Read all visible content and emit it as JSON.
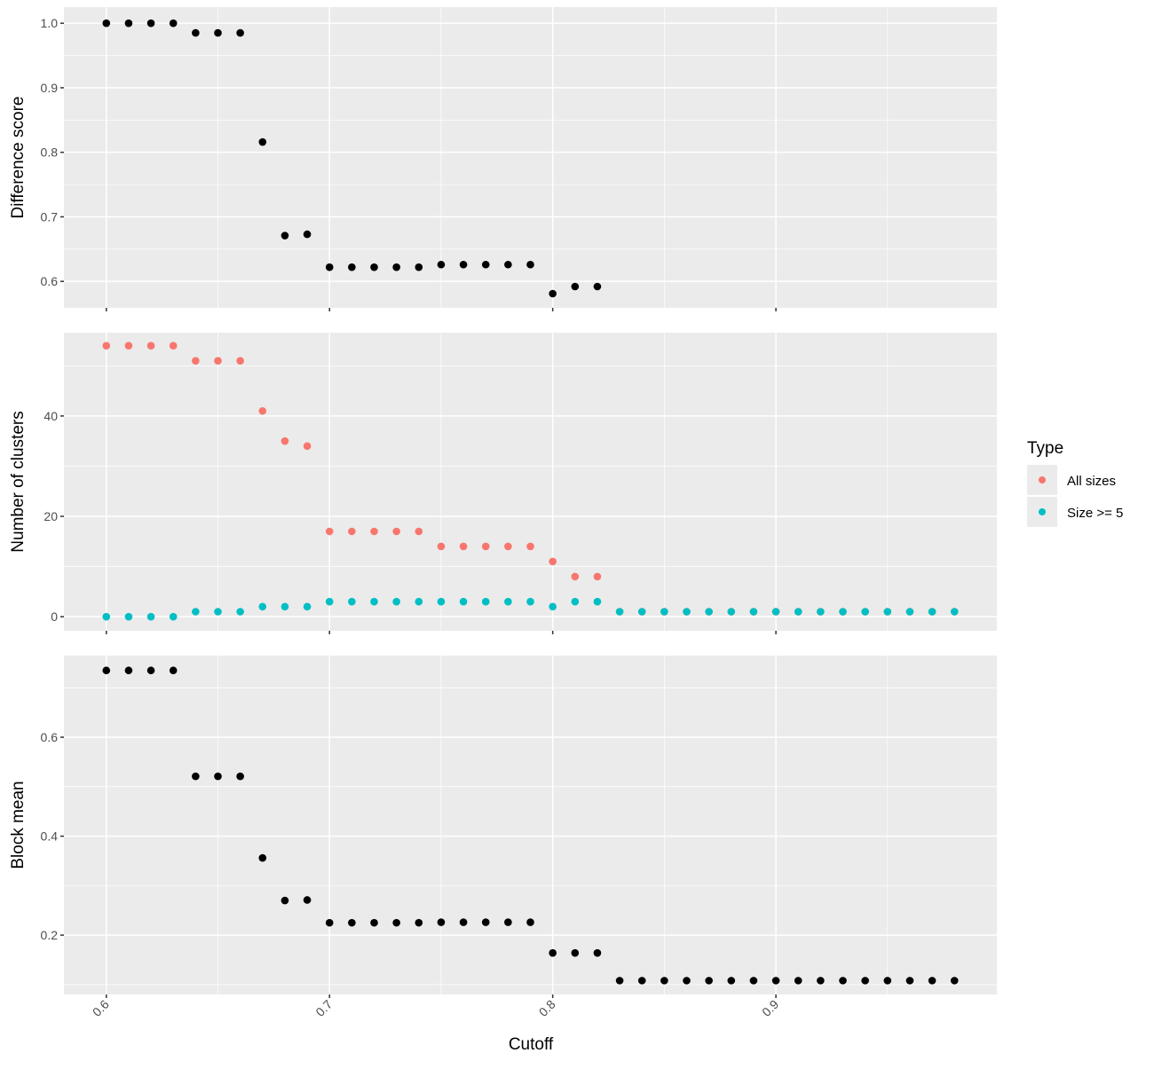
{
  "chart_data": {
    "type": "scatter",
    "xlabel": "Cutoff",
    "xlim": [
      0.581,
      0.999
    ],
    "x_ticks": [
      0.6,
      0.7,
      0.8,
      0.9
    ],
    "x_tick_labels": [
      "0.6",
      "0.7",
      "0.8",
      "0.9"
    ],
    "grid": true,
    "legend": {
      "title": "Type",
      "placement": "right",
      "entries": [
        {
          "label": "All sizes",
          "color": "#F8766D"
        },
        {
          "label": "Size >= 5",
          "color": "#00BFC4"
        }
      ]
    },
    "panels": [
      {
        "ylabel": "Difference score",
        "ylim": [
          0.559,
          1.025
        ],
        "y_ticks": [
          0.6,
          0.7,
          0.8,
          0.9,
          1.0
        ],
        "y_tick_labels": [
          "0.6",
          "0.7",
          "0.8",
          "0.9",
          "1.0"
        ],
        "series": [
          {
            "name": "Difference score",
            "color": "#000000",
            "x": [
              0.6,
              0.61,
              0.62,
              0.63,
              0.64,
              0.65,
              0.66,
              0.67,
              0.68,
              0.69,
              0.7,
              0.71,
              0.72,
              0.73,
              0.74,
              0.75,
              0.76,
              0.77,
              0.78,
              0.79,
              0.8,
              0.81,
              0.82
            ],
            "y": [
              1.0,
              1.0,
              1.0,
              1.0,
              0.985,
              0.985,
              0.985,
              0.816,
              0.671,
              0.673,
              0.622,
              0.622,
              0.622,
              0.622,
              0.622,
              0.626,
              0.626,
              0.626,
              0.626,
              0.626,
              0.581,
              0.592,
              0.592
            ]
          }
        ]
      },
      {
        "ylabel": "Number of clusters",
        "ylim": [
          -2.8,
          56.6
        ],
        "y_ticks": [
          0,
          20,
          40
        ],
        "y_tick_labels": [
          "0",
          "20",
          "40"
        ],
        "series": [
          {
            "name": "All sizes",
            "color": "#F8766D",
            "x": [
              0.6,
              0.61,
              0.62,
              0.63,
              0.64,
              0.65,
              0.66,
              0.67,
              0.68,
              0.69,
              0.7,
              0.71,
              0.72,
              0.73,
              0.74,
              0.75,
              0.76,
              0.77,
              0.78,
              0.79,
              0.8,
              0.81,
              0.82,
              0.83,
              0.84,
              0.85,
              0.86,
              0.87,
              0.88,
              0.89,
              0.9,
              0.91,
              0.92,
              0.93,
              0.94,
              0.95,
              0.96,
              0.97,
              0.98
            ],
            "y": [
              54,
              54,
              54,
              54,
              51,
              51,
              51,
              41,
              35,
              34,
              17,
              17,
              17,
              17,
              17,
              14,
              14,
              14,
              14,
              14,
              11,
              8,
              8,
              1,
              1,
              1,
              1,
              1,
              1,
              1,
              1,
              1,
              1,
              1,
              1,
              1,
              1,
              1,
              1
            ]
          },
          {
            "name": "Size >= 5",
            "color": "#00BFC4",
            "x": [
              0.6,
              0.61,
              0.62,
              0.63,
              0.64,
              0.65,
              0.66,
              0.67,
              0.68,
              0.69,
              0.7,
              0.71,
              0.72,
              0.73,
              0.74,
              0.75,
              0.76,
              0.77,
              0.78,
              0.79,
              0.8,
              0.81,
              0.82,
              0.83,
              0.84,
              0.85,
              0.86,
              0.87,
              0.88,
              0.89,
              0.9,
              0.91,
              0.92,
              0.93,
              0.94,
              0.95,
              0.96,
              0.97,
              0.98
            ],
            "y": [
              0,
              0,
              0,
              0,
              1,
              1,
              1,
              2,
              2,
              2,
              3,
              3,
              3,
              3,
              3,
              3,
              3,
              3,
              3,
              3,
              2,
              3,
              3,
              1,
              1,
              1,
              1,
              1,
              1,
              1,
              1,
              1,
              1,
              1,
              1,
              1,
              1,
              1,
              1
            ]
          }
        ]
      },
      {
        "ylabel": "Block mean",
        "ylim": [
          0.08,
          0.765
        ],
        "y_ticks": [
          0.2,
          0.4,
          0.6
        ],
        "y_tick_labels": [
          "0.2",
          "0.4",
          "0.6"
        ],
        "series": [
          {
            "name": "Block mean",
            "color": "#000000",
            "x": [
              0.6,
              0.61,
              0.62,
              0.63,
              0.64,
              0.65,
              0.66,
              0.67,
              0.68,
              0.69,
              0.7,
              0.71,
              0.72,
              0.73,
              0.74,
              0.75,
              0.76,
              0.77,
              0.78,
              0.79,
              0.8,
              0.81,
              0.82,
              0.83,
              0.84,
              0.85,
              0.86,
              0.87,
              0.88,
              0.89,
              0.9,
              0.91,
              0.92,
              0.93,
              0.94,
              0.95,
              0.96,
              0.97,
              0.98
            ],
            "y": [
              0.735,
              0.735,
              0.735,
              0.735,
              0.521,
              0.521,
              0.521,
              0.356,
              0.27,
              0.271,
              0.225,
              0.225,
              0.225,
              0.225,
              0.225,
              0.226,
              0.226,
              0.226,
              0.226,
              0.226,
              0.164,
              0.164,
              0.164,
              0.108,
              0.108,
              0.108,
              0.108,
              0.108,
              0.108,
              0.108,
              0.108,
              0.108,
              0.108,
              0.108,
              0.108,
              0.108,
              0.108,
              0.108,
              0.108
            ]
          }
        ]
      }
    ]
  }
}
